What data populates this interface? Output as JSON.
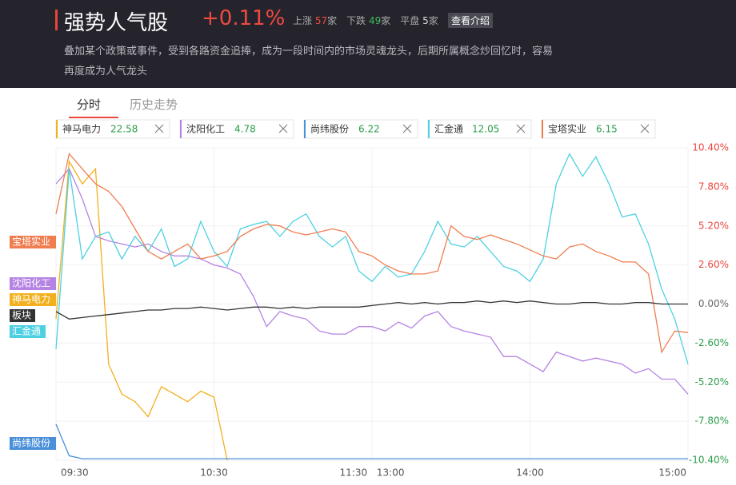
{
  "header": {
    "title": "强势人气股",
    "change": "+0.11%",
    "stats": [
      {
        "label": "上涨",
        "count": 57,
        "unit": "家"
      },
      {
        "label": "下跌",
        "count": 49,
        "unit": "家"
      },
      {
        "label": "平盘",
        "count": 5,
        "unit": "家"
      }
    ],
    "button": "查看介绍",
    "description": "叠加某个政策或事件，受到各路资金追捧，成为一段时间内的市场灵魂龙头，后期所属概念炒回忆时，容易再度成为人气龙头"
  },
  "tabs": [
    "分时",
    "历史走势"
  ],
  "chart_data": {
    "type": "line",
    "categories": [
      "09:30",
      null,
      null,
      null,
      null,
      null,
      null,
      null,
      null,
      null,
      null,
      null,
      "10:30",
      null,
      null,
      null,
      null,
      null,
      null,
      null,
      null,
      null,
      null,
      null,
      "11:30 13:00",
      null,
      null,
      null,
      null,
      null,
      null,
      null,
      null,
      null,
      null,
      null,
      "14:00",
      null,
      null,
      null,
      null,
      null,
      null,
      null,
      null,
      null,
      null,
      null,
      "15:00"
    ],
    "ylim": [
      -10.4,
      10.4
    ],
    "yticks": [
      {
        "value": 10.4,
        "label": "10.40%"
      },
      {
        "value": 7.8,
        "label": "7.80%"
      },
      {
        "value": 5.2,
        "label": "5.20%"
      },
      {
        "value": 2.6,
        "label": "2.60%"
      },
      {
        "value": 0,
        "label": "0.00%"
      },
      {
        "value": -2.6,
        "label": "-2.60%"
      },
      {
        "value": -5.2,
        "label": "-5.20%"
      },
      {
        "value": -7.8,
        "label": "-7.80%"
      },
      {
        "value": -10.4,
        "label": "-10.40%"
      }
    ],
    "grid": true,
    "series": [
      {
        "name": "神马电力",
        "price": 22.58,
        "color": "#f2b01e",
        "values": [
          -1,
          9.5,
          8,
          9,
          -4,
          -6,
          -6.5,
          -7.5,
          -5.5,
          -6,
          -6.5,
          -5.8,
          -6.2,
          -10.4,
          null,
          null,
          null,
          null,
          null,
          null,
          null,
          null,
          null,
          null,
          null,
          null,
          null,
          null,
          null,
          null,
          null,
          null,
          null,
          null,
          null,
          null,
          null,
          null,
          null,
          null,
          null,
          null,
          null,
          null,
          null,
          null,
          null,
          null,
          null
        ]
      },
      {
        "name": "沈阳化工",
        "price": 4.78,
        "color": "#b583e3",
        "values": [
          8,
          9,
          7,
          4.5,
          4.2,
          4,
          3.8,
          4,
          3.5,
          3.2,
          3.2,
          3,
          2.6,
          2.4,
          2,
          0.5,
          -1.5,
          -0.5,
          -0.8,
          -1,
          -1.8,
          -2,
          -2,
          -1.5,
          -1.5,
          -1.8,
          -1.2,
          -1.6,
          -0.8,
          -0.5,
          -1.5,
          -1.8,
          -2,
          -2.2,
          -3.5,
          -3.5,
          -4,
          -4.5,
          -3.2,
          -3.5,
          -3.8,
          -3.6,
          -3.8,
          -4,
          -4.6,
          -4.3,
          -5,
          -5,
          -6
        ]
      },
      {
        "name": "尚纬股份",
        "price": 6.22,
        "color": "#4a90d9",
        "values": [
          -8,
          -10.1,
          -10.3,
          -10.3,
          -10.3,
          -10.3,
          -10.3,
          -10.3,
          -10.3,
          -10.3,
          -10.3,
          -10.3,
          -10.3,
          -10.3,
          -10.3,
          -10.3,
          -10.3,
          -10.3,
          -10.3,
          -10.3,
          -10.3,
          -10.3,
          -10.3,
          -10.3,
          -10.3,
          -10.3,
          -10.3,
          -10.3,
          -10.3,
          -10.3,
          -10.3,
          -10.3,
          -10.3,
          -10.3,
          -10.3,
          -10.3,
          -10.3,
          -10.3,
          -10.3,
          -10.3,
          -10.3,
          -10.3,
          -10.3,
          -10.3,
          -10.3,
          -10.3,
          -10.3,
          -10.3,
          -10.3
        ]
      },
      {
        "name": "汇金通",
        "price": 12.05,
        "color": "#4dd0e1",
        "values": [
          -3,
          9,
          3,
          4.5,
          4.8,
          3,
          4.5,
          3.5,
          5,
          2.5,
          3,
          5.5,
          3.5,
          2.5,
          5,
          5.3,
          5.5,
          4.5,
          5.5,
          6,
          4.5,
          3.8,
          4.5,
          2.2,
          1.5,
          2.5,
          1.8,
          2,
          3.5,
          5.5,
          4,
          3.8,
          4.5,
          3.5,
          2.5,
          2.2,
          1.5,
          3,
          8,
          10,
          8.5,
          9.8,
          8,
          5.8,
          6,
          4,
          1,
          -1,
          -4
        ]
      },
      {
        "name": "宝塔实业",
        "price": 6.15,
        "color": "#f07d50",
        "values": [
          6,
          10,
          9,
          8,
          7.5,
          6.5,
          5,
          3.5,
          3,
          3.5,
          4,
          3,
          3.2,
          3.5,
          4.5,
          5,
          5.3,
          5.2,
          4.8,
          4.6,
          4.8,
          5,
          4.8,
          3.5,
          3.2,
          2.6,
          2.2,
          2,
          2,
          2.2,
          5.2,
          4.5,
          4.3,
          4.6,
          4.3,
          4,
          3.6,
          3.2,
          3,
          3.8,
          4,
          3.5,
          3.2,
          2.8,
          2.8,
          2,
          -3.2,
          -1.8,
          -1.9
        ]
      }
    ],
    "index_series": {
      "name": "板块",
      "color": "#333333",
      "values": [
        -0.5,
        -1,
        -0.9,
        -0.8,
        -0.7,
        -0.6,
        -0.5,
        -0.4,
        -0.4,
        -0.3,
        -0.3,
        -0.2,
        -0.3,
        -0.4,
        -0.3,
        -0.2,
        -0.2,
        -0.3,
        -0.2,
        -0.3,
        -0.2,
        -0.2,
        -0.2,
        -0.2,
        -0.1,
        0,
        0.1,
        0,
        0.1,
        0,
        0.1,
        0.1,
        0.2,
        0.1,
        0.2,
        0.1,
        0.2,
        0.1,
        0,
        0,
        0.1,
        0.1,
        0,
        0,
        0.1,
        0.1,
        0,
        0,
        0
      ]
    }
  }
}
